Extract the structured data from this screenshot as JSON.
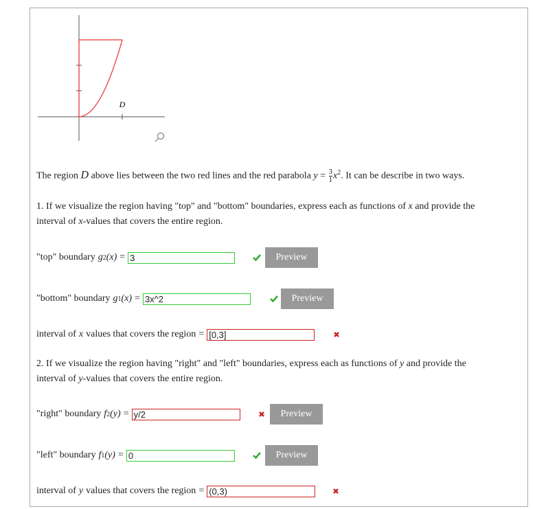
{
  "graph": {
    "label": "D"
  },
  "intro": {
    "t1": "The region",
    "v1": "D",
    "t2": "above lies between the two red lines and the red parabola",
    "lhs": "y",
    "eq": "=",
    "num": "3",
    "den": "1",
    "var": "x",
    "exp": "2",
    "t3": ". It can be describe in two ways."
  },
  "q1": {
    "t1": "1. If we visualize the region having \"top\" and \"bottom\" boundaries, express each as functions of",
    "v1": "x",
    "t2": "and provide the",
    "t3": "interval of",
    "v2": "x",
    "t4": "-values that covers the entire region."
  },
  "q2": {
    "t1": "2. If we visualize the region having \"right\" and \"left\" boundaries, express each as functions of",
    "v1": "y",
    "t2": "and provide the",
    "t3": "interval of",
    "v2": "y",
    "t4": "-values that covers the entire region."
  },
  "fields": [
    {
      "label": "\"top\" boundary",
      "fn": "g",
      "sub": "2",
      "arg": "(x)",
      "eq": "=",
      "value": "3",
      "status": "correct",
      "button": "Preview"
    },
    {
      "label": "\"bottom\" boundary",
      "fn": "g",
      "sub": "1",
      "arg": "(x)",
      "eq": "=",
      "value": "3x^2",
      "status": "correct",
      "button": "Preview"
    },
    {
      "label": "interval of",
      "fn": "x",
      "label2": "values that covers the region",
      "eq": "=",
      "value": "[0,3]",
      "status": "incorrect"
    },
    {
      "label": "\"right\" boundary",
      "fn": "f",
      "sub": "2",
      "arg": "(y)",
      "eq": "=",
      "value": "y/2",
      "status": "incorrect",
      "button": "Preview"
    },
    {
      "label": "\"left\" boundary",
      "fn": "f",
      "sub": "1",
      "arg": "(y)",
      "eq": "=",
      "value": "0",
      "status": "correct",
      "button": "Preview"
    },
    {
      "label": "interval of",
      "fn": "y",
      "label2": "values that covers the region",
      "eq": "=",
      "value": "(0,3)",
      "status": "incorrect"
    }
  ]
}
